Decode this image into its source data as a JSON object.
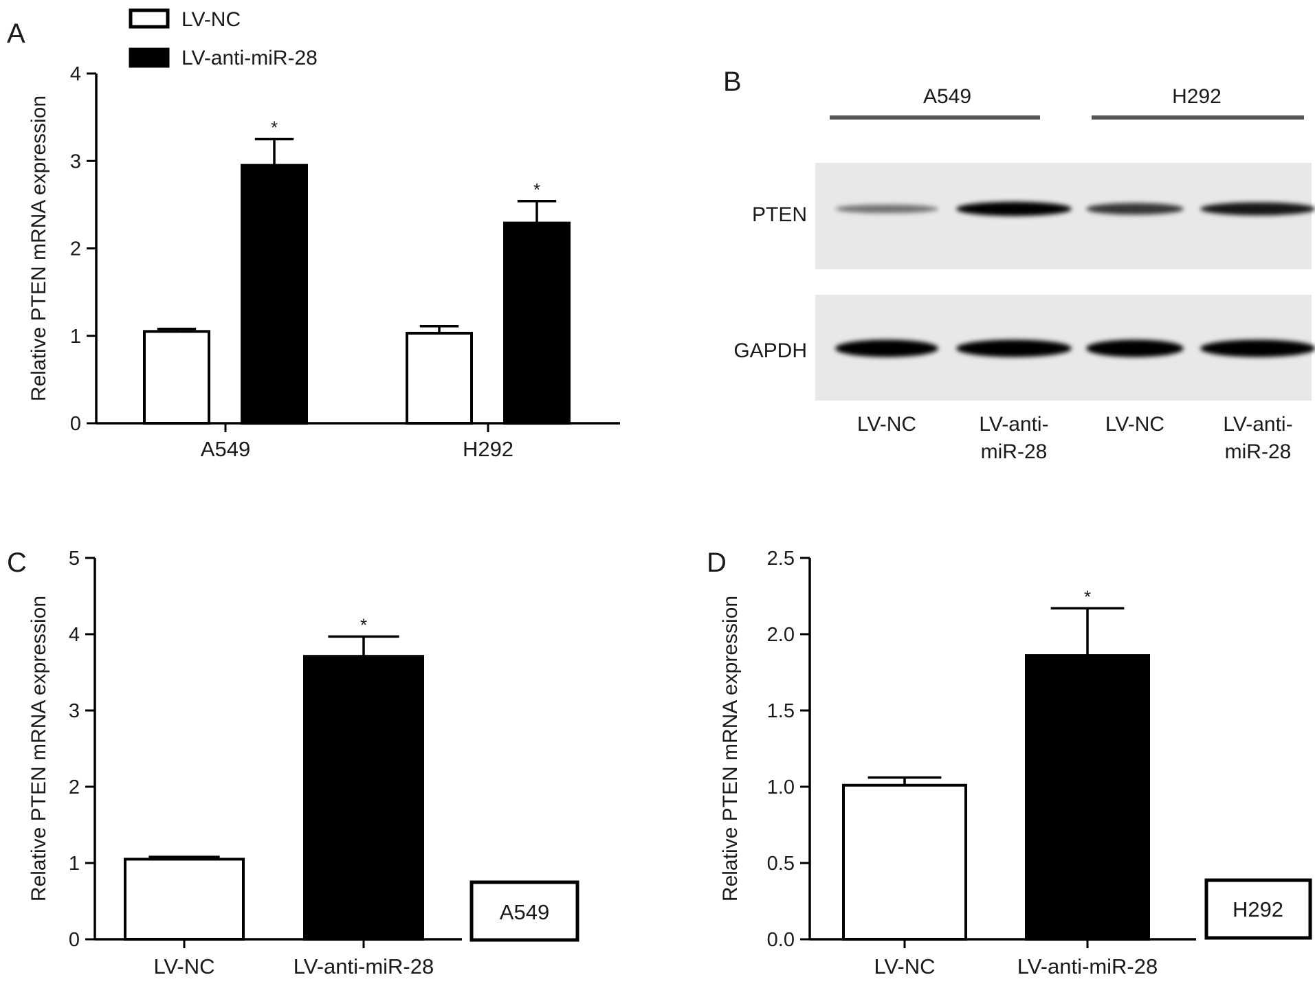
{
  "panels": {
    "A": {
      "letter": "A"
    },
    "B": {
      "letter": "B"
    },
    "C": {
      "letter": "C"
    },
    "D": {
      "letter": "D"
    }
  },
  "legend": [
    {
      "label": "LV-NC",
      "fill": "#ffffff"
    },
    {
      "label": "LV-anti-miR-28",
      "fill": "#000000"
    }
  ],
  "western_blot": {
    "groups": [
      "A549",
      "H292"
    ],
    "proteins": [
      "PTEN",
      "GAPDH"
    ],
    "lanes": [
      "LV-NC",
      "LV-anti-\nmiR-28",
      "LV-NC",
      "LV-anti-\nmiR-28"
    ],
    "band_intensity": {
      "PTEN": [
        0.25,
        1.0,
        0.65,
        0.85
      ],
      "GAPDH": [
        1.0,
        1.0,
        1.0,
        1.0
      ]
    }
  },
  "chart_data": [
    {
      "panel": "A",
      "type": "bar",
      "ylabel": "Relative PTEN mRNA expression",
      "categories": [
        "A549",
        "H292"
      ],
      "ylim": [
        0,
        4
      ],
      "yticks": [
        0,
        1,
        2,
        3,
        4
      ],
      "series": [
        {
          "name": "LV-NC",
          "fill": "#ffffff",
          "values": [
            1.05,
            1.03
          ],
          "errors": [
            0.03,
            0.08
          ]
        },
        {
          "name": "LV-anti-miR-28",
          "fill": "#000000",
          "values": [
            2.95,
            2.29
          ],
          "errors": [
            0.3,
            0.25
          ]
        }
      ],
      "significance": [
        "",
        "*"
      ],
      "significance_series": "LV-anti-miR-28"
    },
    {
      "panel": "C",
      "type": "bar",
      "ylabel": "Relative PTEN mRNA expression",
      "categories": [
        "LV-NC",
        "LV-anti-miR-28"
      ],
      "values": [
        1.05,
        3.71
      ],
      "errors": [
        0.03,
        0.26
      ],
      "fills": [
        "#ffffff",
        "#000000"
      ],
      "significance": [
        "",
        "*"
      ],
      "ylim": [
        0,
        5
      ],
      "yticks": [
        0,
        1,
        2,
        3,
        4,
        5
      ],
      "tick_decimals": 0,
      "annotation": "A549"
    },
    {
      "panel": "D",
      "type": "bar",
      "ylabel": "Relative PTEN mRNA expression",
      "categories": [
        "LV-NC",
        "LV-anti-miR-28"
      ],
      "values": [
        1.01,
        1.86
      ],
      "errors": [
        0.05,
        0.31
      ],
      "fills": [
        "#ffffff",
        "#000000"
      ],
      "significance": [
        "",
        "*"
      ],
      "ylim": [
        0,
        2.5
      ],
      "yticks": [
        0.0,
        0.5,
        1.0,
        1.5,
        2.0,
        2.5
      ],
      "tick_decimals": 1,
      "annotation": "H292"
    }
  ]
}
